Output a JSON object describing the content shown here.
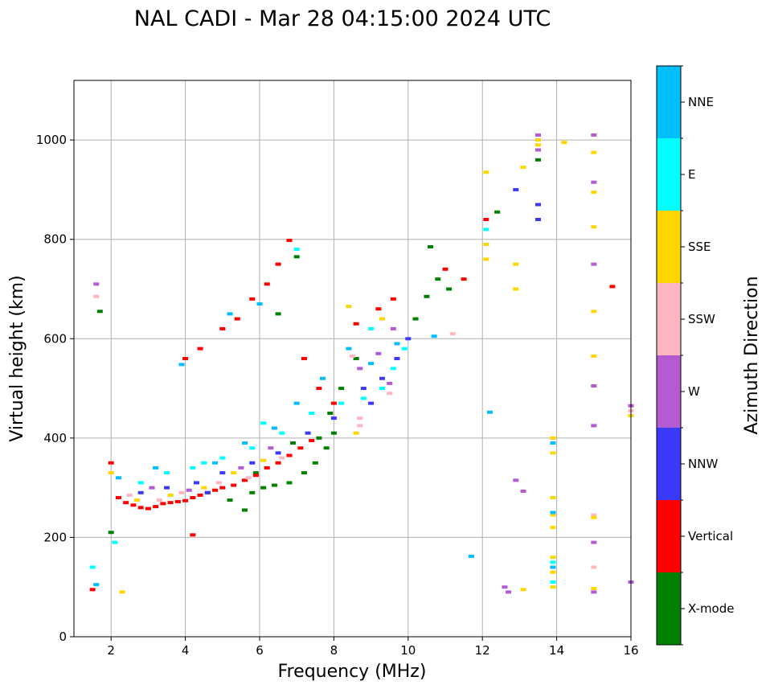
{
  "chart_data": {
    "type": "scatter",
    "title": "NAL CADI - Mar 28 04:15:00 2024 UTC",
    "xlabel": "Frequency (MHz)",
    "ylabel": "Virtual height (km)",
    "xlim": [
      1,
      16
    ],
    "ylim": [
      0,
      1120
    ],
    "xticks": [
      2,
      4,
      6,
      8,
      10,
      12,
      14,
      16
    ],
    "yticks": [
      0,
      200,
      400,
      600,
      800,
      1000
    ],
    "grid": true,
    "colorbar": {
      "label": "Azimuth Direction",
      "categories": [
        {
          "name": "X-mode",
          "color": "#008000"
        },
        {
          "name": "Vertical",
          "color": "#ff0000"
        },
        {
          "name": "NNW",
          "color": "#3a3aff"
        },
        {
          "name": "W",
          "color": "#b45ad2"
        },
        {
          "name": "SSW",
          "color": "#ffb6c1"
        },
        {
          "name": "SSE",
          "color": "#ffd700"
        },
        {
          "name": "E",
          "color": "#00ffff"
        },
        {
          "name": "NNE",
          "color": "#00bfff"
        }
      ]
    },
    "series": [
      {
        "name": "X-mode",
        "points": [
          [
            1.7,
            655
          ],
          [
            2.0,
            210
          ],
          [
            5.2,
            275
          ],
          [
            5.6,
            255
          ],
          [
            5.8,
            290
          ],
          [
            6.1,
            300
          ],
          [
            6.4,
            305
          ],
          [
            6.8,
            310
          ],
          [
            7.2,
            330
          ],
          [
            7.5,
            350
          ],
          [
            7.8,
            380
          ],
          [
            8.0,
            410
          ],
          [
            7.6,
            400
          ],
          [
            7.9,
            450
          ],
          [
            8.2,
            500
          ],
          [
            8.6,
            560
          ],
          [
            7.0,
            765
          ],
          [
            6.9,
            390
          ],
          [
            5.9,
            330
          ],
          [
            6.5,
            650
          ],
          [
            10.5,
            685
          ],
          [
            10.8,
            720
          ],
          [
            11.1,
            700
          ],
          [
            10.6,
            785
          ],
          [
            10.2,
            640
          ],
          [
            12.4,
            855
          ],
          [
            13.5,
            960
          ]
        ]
      },
      {
        "name": "Vertical",
        "points": [
          [
            1.5,
            95
          ],
          [
            2.0,
            350
          ],
          [
            2.2,
            280
          ],
          [
            2.4,
            270
          ],
          [
            2.6,
            265
          ],
          [
            2.8,
            260
          ],
          [
            3.0,
            258
          ],
          [
            3.2,
            262
          ],
          [
            3.4,
            268
          ],
          [
            3.6,
            270
          ],
          [
            3.8,
            272
          ],
          [
            4.0,
            274
          ],
          [
            4.2,
            280
          ],
          [
            4.4,
            285
          ],
          [
            4.6,
            290
          ],
          [
            4.8,
            295
          ],
          [
            5.0,
            300
          ],
          [
            5.3,
            305
          ],
          [
            5.6,
            315
          ],
          [
            5.9,
            325
          ],
          [
            6.2,
            340
          ],
          [
            6.5,
            350
          ],
          [
            6.8,
            365
          ],
          [
            7.1,
            380
          ],
          [
            7.4,
            395
          ],
          [
            4.2,
            205
          ],
          [
            4.0,
            560
          ],
          [
            4.4,
            580
          ],
          [
            5.0,
            620
          ],
          [
            5.4,
            640
          ],
          [
            5.8,
            680
          ],
          [
            6.2,
            710
          ],
          [
            6.5,
            750
          ],
          [
            6.8,
            798
          ],
          [
            7.2,
            560
          ],
          [
            7.6,
            500
          ],
          [
            8.0,
            470
          ],
          [
            8.6,
            630
          ],
          [
            9.2,
            660
          ],
          [
            9.6,
            680
          ],
          [
            11.0,
            740
          ],
          [
            11.5,
            720
          ],
          [
            12.1,
            840
          ],
          [
            15.5,
            705
          ]
        ]
      },
      {
        "name": "NNW",
        "points": [
          [
            2.8,
            290
          ],
          [
            3.5,
            300
          ],
          [
            4.3,
            310
          ],
          [
            5.0,
            330
          ],
          [
            5.8,
            350
          ],
          [
            6.5,
            370
          ],
          [
            7.3,
            410
          ],
          [
            8.0,
            440
          ],
          [
            8.8,
            500
          ],
          [
            9.3,
            520
          ],
          [
            9.7,
            560
          ],
          [
            10.0,
            600
          ],
          [
            12.9,
            900
          ],
          [
            13.5,
            870
          ],
          [
            13.5,
            840
          ],
          [
            9.0,
            470
          ],
          [
            4.6,
            290
          ]
        ]
      },
      {
        "name": "W",
        "points": [
          [
            1.6,
            710
          ],
          [
            3.1,
            300
          ],
          [
            4.1,
            295
          ],
          [
            5.5,
            340
          ],
          [
            6.3,
            380
          ],
          [
            8.7,
            540
          ],
          [
            9.2,
            570
          ],
          [
            9.5,
            510
          ],
          [
            13.5,
            1010
          ],
          [
            13.5,
            980
          ],
          [
            15.0,
            1010
          ],
          [
            15.0,
            915
          ],
          [
            15.0,
            750
          ],
          [
            15.0,
            505
          ],
          [
            15.0,
            425
          ],
          [
            15.0,
            190
          ],
          [
            15.0,
            90
          ],
          [
            12.6,
            100
          ],
          [
            12.7,
            90
          ],
          [
            12.9,
            315
          ],
          [
            13.1,
            293
          ],
          [
            16.0,
            465
          ],
          [
            16.0,
            110
          ],
          [
            9.6,
            620
          ]
        ]
      },
      {
        "name": "SSW",
        "points": [
          [
            1.6,
            685
          ],
          [
            2.5,
            285
          ],
          [
            3.3,
            275
          ],
          [
            3.9,
            290
          ],
          [
            4.9,
            310
          ],
          [
            5.7,
            320
          ],
          [
            6.6,
            360
          ],
          [
            8.5,
            565
          ],
          [
            8.7,
            440
          ],
          [
            8.7,
            425
          ],
          [
            9.5,
            490
          ],
          [
            11.2,
            610
          ],
          [
            15.0,
            140
          ],
          [
            15.0,
            245
          ],
          [
            16.0,
            455
          ]
        ]
      },
      {
        "name": "SSE",
        "points": [
          [
            2.3,
            90
          ],
          [
            2.0,
            330
          ],
          [
            2.7,
            275
          ],
          [
            3.6,
            285
          ],
          [
            4.5,
            300
          ],
          [
            5.3,
            330
          ],
          [
            6.1,
            355
          ],
          [
            8.6,
            410
          ],
          [
            8.4,
            665
          ],
          [
            9.3,
            640
          ],
          [
            12.1,
            935
          ],
          [
            12.1,
            790
          ],
          [
            12.1,
            760
          ],
          [
            12.9,
            750
          ],
          [
            12.9,
            700
          ],
          [
            13.1,
            945
          ],
          [
            13.1,
            95
          ],
          [
            13.9,
            400
          ],
          [
            13.9,
            370
          ],
          [
            13.9,
            280
          ],
          [
            13.9,
            245
          ],
          [
            13.9,
            220
          ],
          [
            13.9,
            160
          ],
          [
            13.9,
            130
          ],
          [
            13.9,
            100
          ],
          [
            14.2,
            995
          ],
          [
            15.0,
            975
          ],
          [
            15.0,
            895
          ],
          [
            15.0,
            825
          ],
          [
            15.0,
            655
          ],
          [
            15.0,
            565
          ],
          [
            15.0,
            240
          ],
          [
            15.0,
            97
          ],
          [
            16.0,
            445
          ],
          [
            13.5,
            990
          ],
          [
            13.5,
            1000
          ]
        ]
      },
      {
        "name": "E",
        "points": [
          [
            1.5,
            140
          ],
          [
            2.1,
            190
          ],
          [
            2.8,
            310
          ],
          [
            3.5,
            330
          ],
          [
            4.2,
            340
          ],
          [
            5.0,
            360
          ],
          [
            5.8,
            380
          ],
          [
            6.6,
            410
          ],
          [
            7.4,
            450
          ],
          [
            8.2,
            470
          ],
          [
            8.8,
            480
          ],
          [
            9.3,
            500
          ],
          [
            9.6,
            540
          ],
          [
            9.9,
            580
          ],
          [
            6.1,
            430
          ],
          [
            4.5,
            350
          ],
          [
            13.9,
            150
          ],
          [
            13.9,
            110
          ],
          [
            12.1,
            820
          ],
          [
            7.0,
            780
          ],
          [
            9.0,
            620
          ]
        ]
      },
      {
        "name": "NNE",
        "points": [
          [
            1.6,
            105
          ],
          [
            2.2,
            320
          ],
          [
            3.2,
            340
          ],
          [
            4.8,
            350
          ],
          [
            5.6,
            390
          ],
          [
            6.4,
            420
          ],
          [
            7.0,
            470
          ],
          [
            7.7,
            520
          ],
          [
            8.4,
            580
          ],
          [
            9.0,
            550
          ],
          [
            9.7,
            590
          ],
          [
            3.9,
            548
          ],
          [
            5.2,
            650
          ],
          [
            6.0,
            670
          ],
          [
            10.7,
            605
          ],
          [
            11.7,
            162
          ],
          [
            12.2,
            452
          ],
          [
            13.9,
            390
          ],
          [
            13.9,
            140
          ],
          [
            13.9,
            250
          ]
        ]
      }
    ]
  }
}
